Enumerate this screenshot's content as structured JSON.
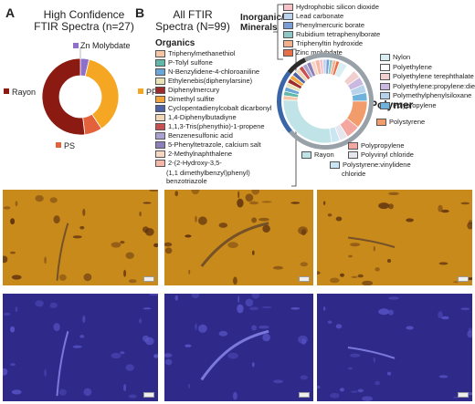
{
  "panel_a": {
    "letter": "A",
    "title_line1": "High Confidence",
    "title_line2": "FTIR Spectra (n=27)",
    "labels": {
      "zn": "Zn Molybdate",
      "rayon": "Rayon",
      "pp": "PP",
      "ps": "PS"
    }
  },
  "panel_b": {
    "letter": "B",
    "title_line1": "All FTIR",
    "title_line2": "Spectra (N=99)",
    "organics_heading": "Organics",
    "inorganic_heading_line1": "Inorganic/",
    "inorganic_heading_line2": "Minerals",
    "polymer_heading": "Polymer",
    "organics": [
      {
        "label": "Triphenylmethanethiol",
        "color": "#f4c6a6"
      },
      {
        "label": "P-Tolyl sulfone",
        "color": "#5fb8a8"
      },
      {
        "label": "N-Benzylidene-4-chloroaniline",
        "color": "#6aa7d8"
      },
      {
        "label": "Ethylenebis(diphenylarsine)",
        "color": "#e9e4b8"
      },
      {
        "label": "Diphenylmercury",
        "color": "#9d2b2b"
      },
      {
        "label": "Dimethyl sulfite",
        "color": "#f2a33a"
      },
      {
        "label": "Cyclopentadienylcobalt dicarbonyl",
        "color": "#4d63a6"
      },
      {
        "label": "1,4-Diphenylbutadiyne",
        "color": "#f1d7b5"
      },
      {
        "label": "1,1,3-Tris(phenythio)-1-propene",
        "color": "#c95050"
      },
      {
        "label": "Benzenesulfonic acid",
        "color": "#a7a2cf"
      },
      {
        "label": "5-Phenyltetrazole, calcium salt",
        "color": "#8d7fb8"
      },
      {
        "label": "2-Methylnaphthalene",
        "color": "#f7d7c3"
      },
      {
        "label": "2-(2-Hydroxy-3,5-",
        "color": "#f6b7a8"
      }
    ],
    "organics_continuation": [
      "(1,1 dimethylbenzyl)phenyl)",
      "benzotriazole"
    ],
    "inorganics": [
      {
        "label": "Hydrophobic silicon dioxide",
        "color": "#f6c2c6"
      },
      {
        "label": "Lead carbonate",
        "color": "#bcd3ee"
      },
      {
        "label": "Phenylmercuric borate",
        "color": "#7a9fd6"
      },
      {
        "label": "Rubidium tetraphenylborate",
        "color": "#8fc7c4"
      },
      {
        "label": "Triphenyltin hydroxide",
        "color": "#f4b08c"
      },
      {
        "label": "Zinc molybdate",
        "color": "#e96f49"
      }
    ],
    "polymers_right": [
      {
        "label": "Nylon",
        "color": "#d8eef2"
      },
      {
        "label": "Polyethylene",
        "color": "#ffffff"
      },
      {
        "label": "Polyethylene terephthalate",
        "color": "#f2cfcf"
      },
      {
        "label": "Polyethylene:propylene:diene",
        "color": "#c9b8e0"
      },
      {
        "label": "Polymethylphenylsiloxane",
        "color": "#b7d3ec"
      },
      {
        "label": "Polypropylene",
        "color": "#6fb3dd"
      }
    ],
    "polystyrene": {
      "label": "Polystyrene",
      "color": "#f29b6b"
    },
    "polymers_bottom": [
      {
        "label": "Rayon",
        "color": "#bfe3e6"
      },
      {
        "label": "Polypropylene",
        "color": "#f4a6a0"
      },
      {
        "label": "Polyvinyl chloride",
        "color": "#e6e6ef"
      },
      {
        "label": "Polystyrene:vinylidene",
        "color": "#c9e6f2"
      }
    ],
    "polymers_bottom_continuation": "chloride"
  },
  "chart_data": [
    {
      "type": "pie",
      "title": "High Confidence FTIR Spectra (n=27)",
      "labels": [
        "Zn Molybdate",
        "PP",
        "PS",
        "Rayon"
      ],
      "values": [
        1,
        10,
        2,
        14
      ],
      "colors": [
        "#8e6fc9",
        "#f5a623",
        "#e3623b",
        "#8b1a12"
      ]
    },
    {
      "type": "pie",
      "title": "All FTIR Spectra (N=99)",
      "categories": [
        "Polymer",
        "Organics",
        "Inorganic/Minerals"
      ],
      "outer_ring_values": [
        70,
        22,
        7
      ],
      "outer_ring_colors": [
        "#98a0a8",
        "#3a66a8",
        "#2b2b2b"
      ]
    }
  ],
  "micrographs": {
    "brightfield_color": "#c98a1c",
    "fluorescence_color": "#2f2a8a"
  }
}
